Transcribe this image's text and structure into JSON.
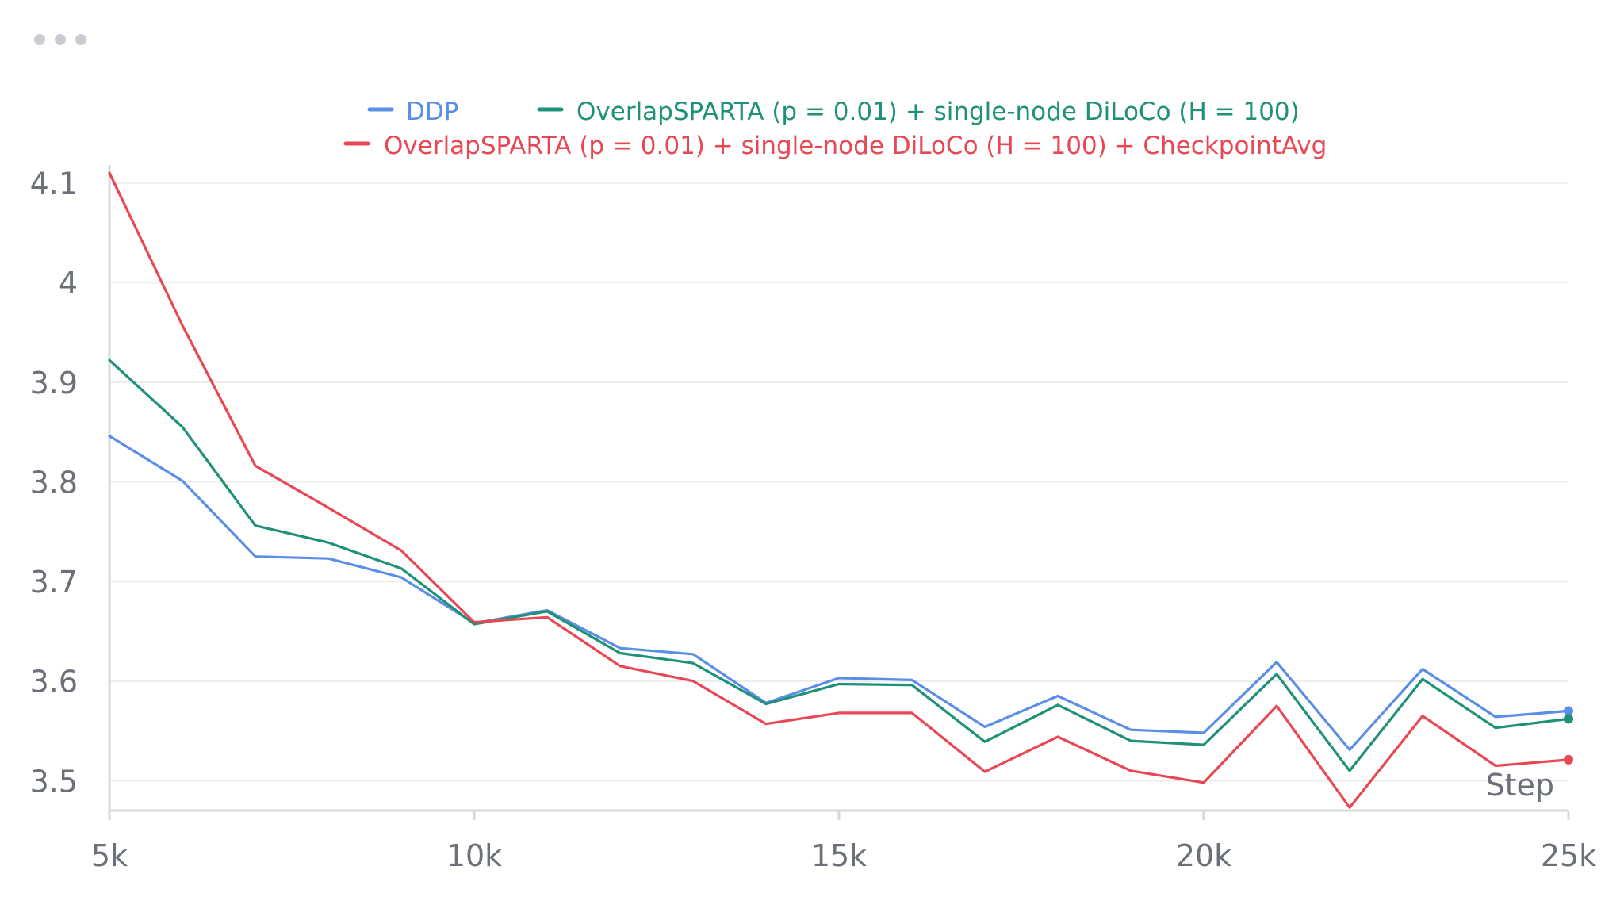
{
  "panel": {
    "menu_icon": "ellipsis-icon"
  },
  "chart_data": {
    "type": "line",
    "title": "",
    "xlabel": "Step",
    "ylabel": "",
    "xlim": [
      5000,
      25000
    ],
    "ylim": [
      3.47,
      4.11
    ],
    "x_ticks": [
      5000,
      10000,
      15000,
      20000,
      25000
    ],
    "x_tick_labels": [
      "5k",
      "10k",
      "15k",
      "20k",
      "25k"
    ],
    "y_ticks": [
      3.5,
      3.6,
      3.7,
      3.8,
      3.9,
      4.0,
      4.1
    ],
    "y_tick_labels": [
      "3.5",
      "3.6",
      "3.7",
      "3.8",
      "3.9",
      "4",
      "4.1"
    ],
    "grid": true,
    "legend_position": "top-center",
    "x": [
      5000,
      6000,
      7000,
      8000,
      9000,
      10000,
      11000,
      12000,
      13000,
      14000,
      15000,
      16000,
      17000,
      18000,
      19000,
      20000,
      21000,
      22000,
      23000,
      24000,
      25000
    ],
    "series": [
      {
        "name": "DDP",
        "color": "#5b8ee6",
        "values": [
          3.846,
          3.801,
          3.725,
          3.723,
          3.704,
          3.658,
          3.671,
          3.633,
          3.627,
          3.578,
          3.603,
          3.601,
          3.554,
          3.585,
          3.551,
          3.548,
          3.619,
          3.531,
          3.612,
          3.564,
          3.57
        ]
      },
      {
        "name": "OverlapSPARTA (p = 0.01) + single-node DiLoCo (H = 100)",
        "color": "#1f9179",
        "values": [
          3.922,
          3.855,
          3.756,
          3.739,
          3.713,
          3.657,
          3.67,
          3.628,
          3.618,
          3.577,
          3.597,
          3.596,
          3.539,
          3.576,
          3.54,
          3.536,
          3.607,
          3.51,
          3.602,
          3.553,
          3.562
        ]
      },
      {
        "name": "OverlapSPARTA (p = 0.01) + single-node DiLoCo (H = 100) + CheckpointAvg",
        "color": "#e84754",
        "values": [
          4.11,
          3.957,
          3.816,
          3.774,
          3.731,
          3.659,
          3.664,
          3.615,
          3.6,
          3.557,
          3.568,
          3.568,
          3.509,
          3.544,
          3.51,
          3.498,
          3.575,
          3.473,
          3.565,
          3.515,
          3.521
        ]
      }
    ]
  }
}
